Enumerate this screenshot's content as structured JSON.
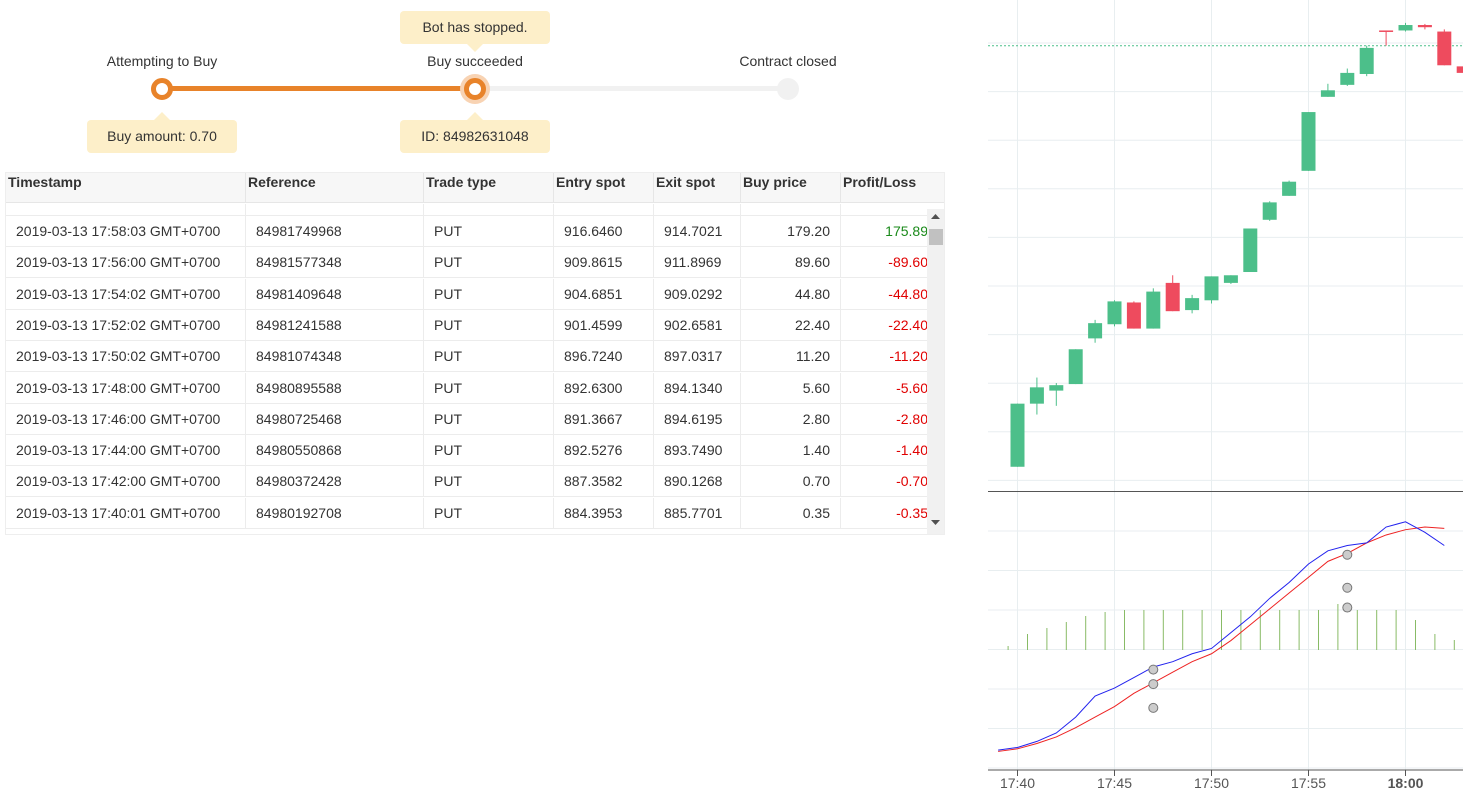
{
  "status": {
    "bot_message": "Bot has stopped.",
    "steps": [
      {
        "label": "Attempting to Buy",
        "tooltip": "Buy amount: 0.70"
      },
      {
        "label": "Buy succeeded",
        "tooltip": "ID: 84982631048"
      },
      {
        "label": "Contract closed"
      }
    ]
  },
  "table": {
    "columns": [
      "Timestamp",
      "Reference",
      "Trade type",
      "Entry spot",
      "Exit spot",
      "Buy price",
      "Profit/Loss"
    ],
    "rows": [
      [
        "2019-03-13 17:58:03 GMT+0700",
        "84981749968",
        "PUT",
        "916.6460",
        "914.7021",
        "179.20",
        "175.89"
      ],
      [
        "2019-03-13 17:56:00 GMT+0700",
        "84981577348",
        "PUT",
        "909.8615",
        "911.8969",
        "89.60",
        "-89.60"
      ],
      [
        "2019-03-13 17:54:02 GMT+0700",
        "84981409648",
        "PUT",
        "904.6851",
        "909.0292",
        "44.80",
        "-44.80"
      ],
      [
        "2019-03-13 17:52:02 GMT+0700",
        "84981241588",
        "PUT",
        "901.4599",
        "902.6581",
        "22.40",
        "-22.40"
      ],
      [
        "2019-03-13 17:50:02 GMT+0700",
        "84981074348",
        "PUT",
        "896.7240",
        "897.0317",
        "11.20",
        "-11.20"
      ],
      [
        "2019-03-13 17:48:00 GMT+0700",
        "84980895588",
        "PUT",
        "892.6300",
        "894.1340",
        "5.60",
        "-5.60"
      ],
      [
        "2019-03-13 17:46:00 GMT+0700",
        "84980725468",
        "PUT",
        "891.3667",
        "894.6195",
        "2.80",
        "-2.80"
      ],
      [
        "2019-03-13 17:44:00 GMT+0700",
        "84980550868",
        "PUT",
        "892.5276",
        "893.7490",
        "1.40",
        "-1.40"
      ],
      [
        "2019-03-13 17:42:00 GMT+0700",
        "84980372428",
        "PUT",
        "887.3582",
        "890.1268",
        "0.70",
        "-0.70"
      ],
      [
        "2019-03-13 17:40:01 GMT+0700",
        "84980192708",
        "PUT",
        "884.3953",
        "885.7701",
        "0.35",
        "-0.35"
      ]
    ]
  },
  "chart": {
    "x_ticks": [
      "17:40",
      "17:45",
      "17:50",
      "17:55",
      "18:00"
    ],
    "bold_tick": "18:00",
    "colors": {
      "up": "#4cbf8a",
      "down": "#ee4b5e",
      "fast_ma": "#2222ee",
      "slow_ma": "#ee2222",
      "volume": "#88bb66",
      "grid": "#e8eef0"
    },
    "candles": [
      {
        "time": "17:40",
        "open": 884.4,
        "close": 890.2,
        "high": 890.2,
        "low": 884.4
      },
      {
        "time": "17:41",
        "open": 890.2,
        "close": 891.7,
        "high": 892.6,
        "low": 889.2
      },
      {
        "time": "17:42",
        "open": 891.4,
        "close": 891.9,
        "high": 892.1,
        "low": 890.0
      },
      {
        "time": "17:43",
        "open": 892.0,
        "close": 895.2,
        "high": 895.2,
        "low": 892.0
      },
      {
        "time": "17:44",
        "open": 896.2,
        "close": 897.6,
        "high": 897.9,
        "low": 895.8
      },
      {
        "time": "17:45",
        "open": 897.5,
        "close": 899.6,
        "high": 899.7,
        "low": 897.3
      },
      {
        "time": "17:46",
        "open": 899.5,
        "close": 897.1,
        "high": 899.6,
        "low": 897.1
      },
      {
        "time": "17:47",
        "open": 897.1,
        "close": 900.5,
        "high": 900.8,
        "low": 897.1
      },
      {
        "time": "17:48",
        "open": 901.3,
        "close": 898.7,
        "high": 902.0,
        "low": 898.7
      },
      {
        "time": "17:49",
        "open": 898.8,
        "close": 899.9,
        "high": 900.2,
        "low": 898.5
      },
      {
        "time": "17:50",
        "open": 899.7,
        "close": 901.9,
        "high": 901.9,
        "low": 899.4
      },
      {
        "time": "17:51",
        "open": 901.3,
        "close": 902.0,
        "high": 902.0,
        "low": 901.2
      },
      {
        "time": "17:52",
        "open": 902.3,
        "close": 906.3,
        "high": 906.3,
        "low": 902.3
      },
      {
        "time": "17:53",
        "open": 907.1,
        "close": 908.7,
        "high": 908.8,
        "low": 907.0
      },
      {
        "time": "17:54",
        "open": 909.3,
        "close": 910.6,
        "high": 910.7,
        "low": 909.3
      },
      {
        "time": "17:55",
        "open": 911.6,
        "close": 917.0,
        "high": 917.0,
        "low": 911.6
      },
      {
        "time": "17:56",
        "open": 918.4,
        "close": 919.0,
        "high": 919.6,
        "low": 918.4
      },
      {
        "time": "17:57",
        "open": 919.5,
        "close": 920.6,
        "high": 921.0,
        "low": 919.4
      },
      {
        "time": "17:58",
        "open": 920.5,
        "close": 922.9,
        "high": 923.1,
        "low": 920.3
      },
      {
        "time": "17:59",
        "open": 924.5,
        "close": 924.4,
        "high": 924.5,
        "low": 923.1
      },
      {
        "time": "18:00",
        "open": 924.5,
        "close": 925.0,
        "high": 925.2,
        "low": 924.4
      },
      {
        "time": "18:01",
        "open": 925.0,
        "close": 924.8,
        "high": 925.1,
        "low": 924.6
      },
      {
        "time": "18:02",
        "open": 924.4,
        "close": 921.3,
        "high": 924.6,
        "low": 921.3
      },
      {
        "time": "18:03",
        "open": 921.2,
        "close": 920.6,
        "high": 921.2,
        "low": 920.5
      }
    ],
    "indicator_fast": [
      0.45,
      0.55,
      0.78,
      1.1,
      1.7,
      2.5,
      2.8,
      3.2,
      3.6,
      3.8,
      4.1,
      4.3,
      4.9,
      5.5,
      6.2,
      6.8,
      7.5,
      8.0,
      8.2,
      8.3,
      8.9,
      9.1,
      8.7,
      8.2
    ],
    "indicator_slow": [
      0.4,
      0.5,
      0.7,
      0.95,
      1.3,
      1.7,
      2.1,
      2.6,
      3.0,
      3.4,
      3.8,
      4.1,
      4.6,
      5.2,
      5.8,
      6.4,
      7.0,
      7.6,
      7.9,
      8.3,
      8.6,
      8.8,
      8.9,
      8.85
    ],
    "volumes": [
      0.1,
      0.4,
      0.55,
      0.7,
      0.85,
      0.95,
      1.0,
      1.0,
      1.0,
      1.0,
      1.0,
      1.0,
      1.0,
      1.0,
      1.0,
      1.0,
      1.0,
      1.15,
      1.0,
      1.0,
      1.0,
      0.75,
      0.4,
      0.25
    ],
    "indicator_range": [
      0,
      10
    ],
    "markers": [
      {
        "time": "17:47",
        "series": "indicator",
        "value": 3.5
      },
      {
        "time": "17:47",
        "series": "indicator",
        "value": 2.95
      },
      {
        "time": "17:47",
        "series": "indicator",
        "value": 2.05
      },
      {
        "time": "17:57",
        "series": "indicator",
        "value": 7.85
      },
      {
        "time": "17:57",
        "series": "indicator",
        "value": 6.6
      },
      {
        "time": "17:57",
        "series": "indicator",
        "value": 5.85
      }
    ],
    "price_line": 923.1,
    "price_range": [
      883.0,
      927.3
    ]
  }
}
